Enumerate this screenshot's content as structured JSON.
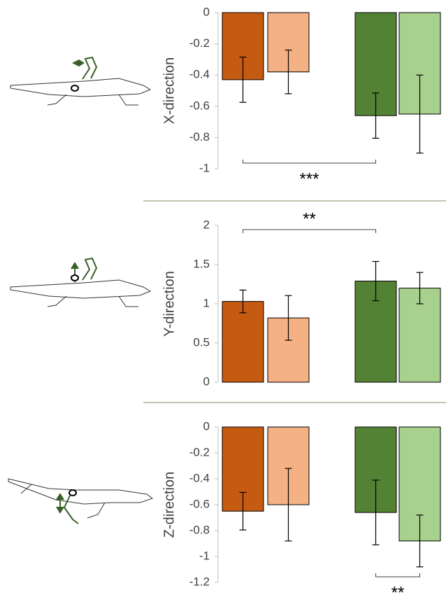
{
  "chart_data": [
    {
      "type": "bar",
      "ylabel": "X-direction",
      "ylim": [
        -1,
        0
      ],
      "yticks": [
        0,
        -0.2,
        -0.4,
        -0.6,
        -0.8,
        -1
      ],
      "values": [
        -0.43,
        -0.38,
        -0.66,
        -0.65
      ],
      "errors": [
        0.145,
        0.14,
        0.145,
        0.25
      ],
      "colors": [
        "#c55a11",
        "#f4b183",
        "#548235",
        "#a9d18e"
      ],
      "significance": [
        {
          "label": "***",
          "between": [
            0,
            2
          ],
          "side": "below"
        }
      ]
    },
    {
      "type": "bar",
      "ylabel": "Y-direction",
      "ylim": [
        0,
        2
      ],
      "yticks": [
        2,
        1.5,
        1,
        0.5,
        0
      ],
      "values": [
        1.03,
        0.82,
        1.29,
        1.2
      ],
      "errors": [
        0.145,
        0.285,
        0.25,
        0.2
      ],
      "colors": [
        "#c55a11",
        "#f4b183",
        "#548235",
        "#a9d18e"
      ],
      "significance": [
        {
          "label": "**",
          "between": [
            0,
            2
          ],
          "side": "above"
        }
      ]
    },
    {
      "type": "bar",
      "ylabel": "Z-direction",
      "ylim": [
        -1.2,
        0
      ],
      "yticks": [
        0,
        -0.2,
        -0.4,
        -0.6,
        -0.8,
        -1,
        -1.2
      ],
      "values": [
        -0.65,
        -0.6,
        -0.66,
        -0.88
      ],
      "errors": [
        0.145,
        0.28,
        0.25,
        0.2
      ],
      "colors": [
        "#c55a11",
        "#f4b183",
        "#548235",
        "#a9d18e"
      ],
      "significance": [
        {
          "label": "**",
          "between": [
            2,
            3
          ],
          "side": "below"
        }
      ]
    }
  ]
}
